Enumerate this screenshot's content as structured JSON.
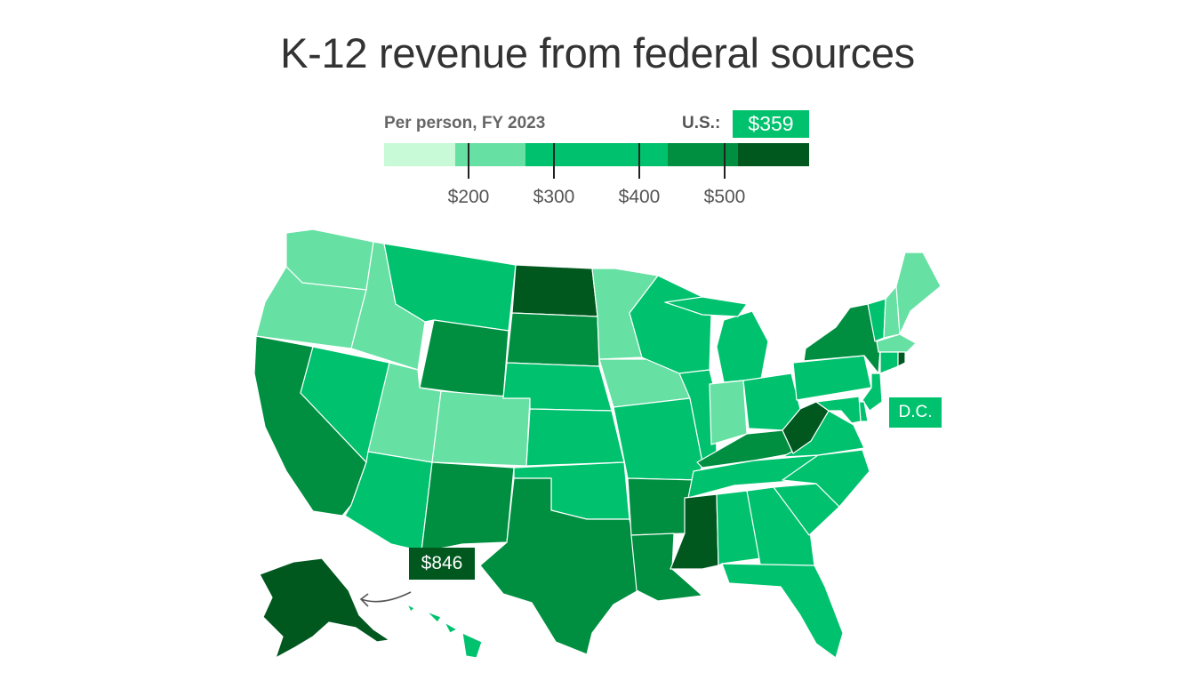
{
  "title": "K-12 revenue from federal sources",
  "legend": {
    "title": "Per person, FY 2023",
    "us_label": "U.S.:",
    "us_value": "$359",
    "colors": [
      "#c8fad8",
      "#66e0a3",
      "#00c26e",
      "#00c26e",
      "#008f40",
      "#00581f"
    ],
    "bins": [
      {
        "color": "#c8fad8"
      },
      {
        "color": "#66e0a3"
      },
      {
        "color": "#00c26e"
      },
      {
        "color": "#00c26e"
      },
      {
        "color": "#008f40"
      },
      {
        "color": "#00581f"
      }
    ],
    "ticks": [
      "$200",
      "$300",
      "$400",
      "$500"
    ]
  },
  "callouts": {
    "dc": "D.C.",
    "alaska": "$846"
  },
  "states": {
    "WA": "#66e0a3",
    "OR": "#66e0a3",
    "CA": "#008f40",
    "NV": "#00c26e",
    "ID": "#66e0a3",
    "MT": "#00c26e",
    "WY": "#008f40",
    "UT": "#66e0a3",
    "CO": "#66e0a3",
    "AZ": "#00c26e",
    "NM": "#008f40",
    "ND": "#00581f",
    "SD": "#008f40",
    "NE": "#00c26e",
    "KS": "#00c26e",
    "OK": "#00c26e",
    "TX": "#008f40",
    "MN": "#66e0a3",
    "IA": "#66e0a3",
    "MO": "#00c26e",
    "AR": "#008f40",
    "LA": "#008f40",
    "WI": "#00c26e",
    "IL": "#00c26e",
    "MI": "#00c26e",
    "IN": "#66e0a3",
    "OH": "#00c26e",
    "KY": "#008f40",
    "TN": "#00c26e",
    "MS": "#00581f",
    "AL": "#00c26e",
    "GA": "#00c26e",
    "FL": "#00c26e",
    "SC": "#00c26e",
    "NC": "#00c26e",
    "VA": "#00c26e",
    "WV": "#00581f",
    "PA": "#00c26e",
    "NY": "#008f40",
    "VT": "#00c26e",
    "NH": "#66e0a3",
    "ME": "#66e0a3",
    "MA": "#66e0a3",
    "RI": "#00581f",
    "CT": "#00c26e",
    "NJ": "#00c26e",
    "DE": "#00c26e",
    "MD": "#00c26e",
    "AK": "#00581f",
    "HI": "#00c26e"
  }
}
